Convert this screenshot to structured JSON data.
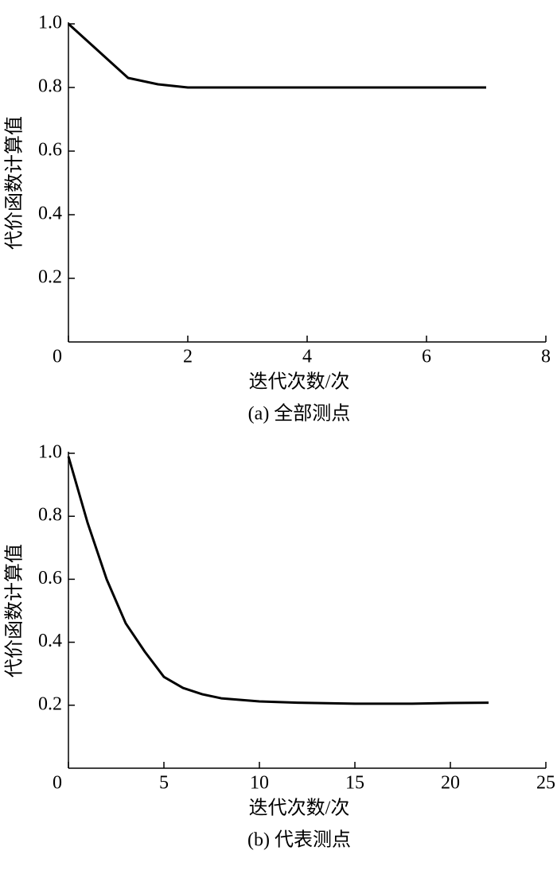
{
  "chart_data": [
    {
      "type": "line",
      "caption": "(a) 全部测点",
      "xlabel": "迭代次数/次",
      "ylabel": "代价函数计算值",
      "x": [
        0,
        1,
        1.5,
        2,
        2.5,
        3,
        4,
        5,
        6,
        7
      ],
      "values": [
        1.0,
        0.83,
        0.81,
        0.8,
        0.8,
        0.8,
        0.8,
        0.8,
        0.8,
        0.8
      ],
      "color": "#000000",
      "xlim": [
        0,
        8
      ],
      "xticks": [
        0,
        2,
        4,
        6,
        8
      ],
      "ylim": [
        0,
        1.0
      ],
      "yticks": [
        0.2,
        0.4,
        0.6,
        0.8,
        {
          "value": 1.0,
          "label": "1.0"
        }
      ]
    },
    {
      "type": "line",
      "caption": "(b) 代表测点",
      "xlabel": "迭代次数/次",
      "ylabel": "代价函数计算值",
      "x": [
        0,
        1,
        2,
        3,
        4,
        5,
        6,
        7,
        8,
        10,
        12,
        15,
        18,
        20,
        22
      ],
      "values": [
        0.99,
        0.78,
        0.6,
        0.46,
        0.37,
        0.29,
        0.255,
        0.235,
        0.222,
        0.212,
        0.208,
        0.205,
        0.205,
        0.207,
        0.208
      ],
      "color": "#000000",
      "xlim": [
        0,
        25
      ],
      "xticks": [
        0,
        5,
        10,
        15,
        20,
        25
      ],
      "ylim": [
        0,
        1.0
      ],
      "yticks": [
        0.2,
        0.4,
        0.6,
        0.8,
        {
          "value": 1.0,
          "label": "1.0"
        }
      ]
    }
  ]
}
